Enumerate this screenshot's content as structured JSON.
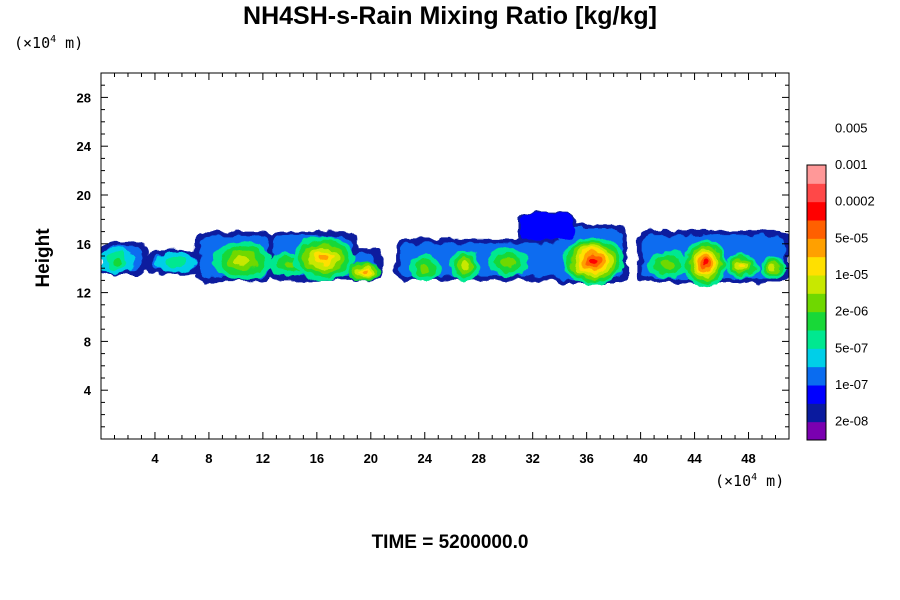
{
  "chart_data": {
    "type": "heatmap",
    "title": "NH4SH-s-Rain Mixing Ratio [kg/kg]",
    "ylabel": "Height",
    "x_unit": "(×10^4 m)",
    "y_unit": "(×10^4 m)",
    "xlim": [
      0,
      51
    ],
    "ylim": [
      0,
      30
    ],
    "x_ticks": [
      4,
      8,
      12,
      16,
      20,
      24,
      28,
      32,
      36,
      40,
      44,
      48
    ],
    "y_ticks": [
      4,
      8,
      12,
      16,
      20,
      24,
      28
    ],
    "colorbar": {
      "labels": [
        "2e-08",
        "1e-07",
        "5e-07",
        "2e-06",
        "1e-05",
        "5e-05",
        "0.0002",
        "0.001",
        "0.005"
      ],
      "colors": [
        "#7a00b0",
        "#0a1a9e",
        "#0000ff",
        "#0a6cf0",
        "#00cfe8",
        "#00e890",
        "#18d838",
        "#6fd800",
        "#c8e800",
        "#ffe000",
        "#ffa000",
        "#ff6000",
        "#ff0000",
        "#ff4848",
        "#ff9898"
      ]
    },
    "cloud_layer": {
      "height_range": [
        12.6,
        18.5
      ],
      "levels": [
        "2e-08",
        "1e-07",
        "5e-07",
        "2e-06",
        "1e-05",
        "5e-05",
        "0.0002",
        "0.001"
      ],
      "clusters": [
        {
          "x": 1.2,
          "y": 14.6,
          "peak": "5e-06"
        },
        {
          "x": 10.5,
          "y": 14.5,
          "peak": "2e-05"
        },
        {
          "x": 16.5,
          "y": 14.6,
          "peak": "0.0003"
        },
        {
          "x": 19.5,
          "y": 13.6,
          "peak": "0.0002"
        },
        {
          "x": 24,
          "y": 14.0,
          "peak": "5e-06"
        },
        {
          "x": 27,
          "y": 14.0,
          "peak": "3e-05"
        },
        {
          "x": 32.2,
          "y": 17.4,
          "peak": "1e-07"
        },
        {
          "x": 36.5,
          "y": 14.5,
          "peak": "0.002"
        },
        {
          "x": 44.7,
          "y": 14.2,
          "peak": "0.002"
        },
        {
          "x": 49,
          "y": 14.2,
          "peak": "5e-05"
        }
      ]
    }
  },
  "time_label": "TIME = 5200000.0"
}
